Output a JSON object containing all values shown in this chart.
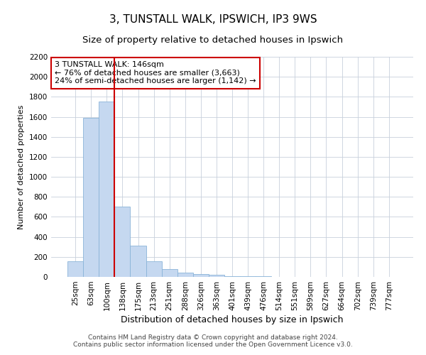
{
  "title": "3, TUNSTALL WALK, IPSWICH, IP3 9WS",
  "subtitle": "Size of property relative to detached houses in Ipswich",
  "xlabel": "Distribution of detached houses by size in Ipswich",
  "ylabel": "Number of detached properties",
  "footer_line1": "Contains HM Land Registry data © Crown copyright and database right 2024.",
  "footer_line2": "Contains public sector information licensed under the Open Government Licence v3.0.",
  "categories": [
    "25sqm",
    "63sqm",
    "100sqm",
    "138sqm",
    "175sqm",
    "213sqm",
    "251sqm",
    "288sqm",
    "326sqm",
    "363sqm",
    "401sqm",
    "439sqm",
    "476sqm",
    "514sqm",
    "551sqm",
    "589sqm",
    "627sqm",
    "664sqm",
    "702sqm",
    "739sqm",
    "777sqm"
  ],
  "values": [
    155,
    1590,
    1750,
    700,
    310,
    155,
    80,
    45,
    25,
    20,
    10,
    5,
    10,
    2,
    1,
    1,
    0,
    0,
    0,
    0,
    0
  ],
  "bar_color": "#c5d8f0",
  "bar_edge_color": "#8ab4d8",
  "grid_color": "#c8d0dc",
  "vline_color": "#cc0000",
  "vline_xindex": 2.5,
  "annotation_text": "3 TUNSTALL WALK: 146sqm\n← 76% of detached houses are smaller (3,663)\n24% of semi-detached houses are larger (1,142) →",
  "annotation_box_edgecolor": "#cc0000",
  "annotation_box_facecolor": "#ffffff",
  "ylim": [
    0,
    2200
  ],
  "yticks": [
    0,
    200,
    400,
    600,
    800,
    1000,
    1200,
    1400,
    1600,
    1800,
    2000,
    2200
  ],
  "title_fontsize": 11,
  "subtitle_fontsize": 9.5,
  "xlabel_fontsize": 9,
  "ylabel_fontsize": 8,
  "tick_fontsize": 7.5,
  "annotation_fontsize": 8,
  "footer_fontsize": 6.5,
  "title_fontweight": "normal"
}
